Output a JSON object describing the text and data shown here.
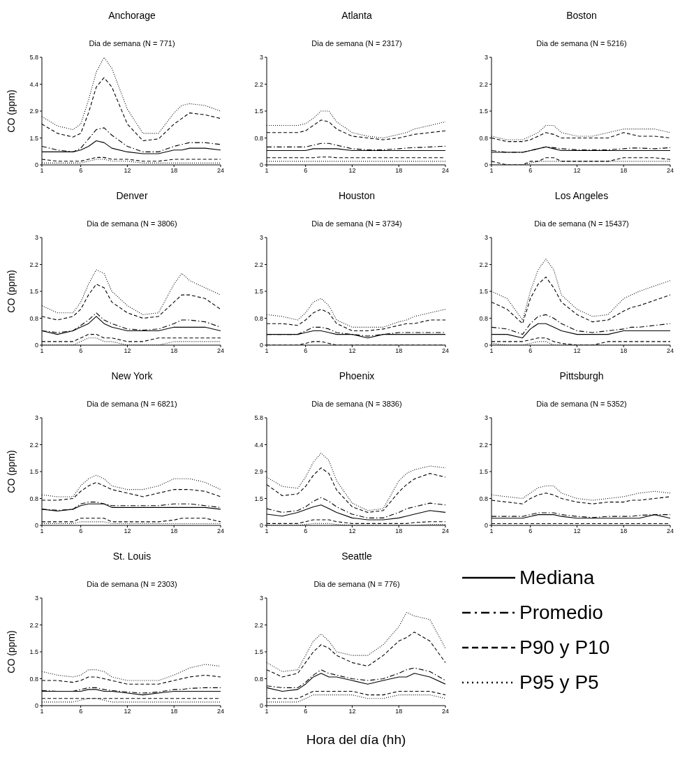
{
  "chart_data": [
    {
      "type": "line",
      "title": "Anchorage",
      "subtitle": "Dia de semana (N = 771)",
      "ylabel": "CO (ppm)",
      "x": [
        1,
        3,
        5,
        6,
        7,
        8,
        9,
        10,
        12,
        14,
        16,
        18,
        19,
        20,
        22,
        24
      ],
      "xlim": [
        1,
        24
      ],
      "xticks": [
        1,
        6,
        12,
        18,
        24
      ],
      "ylim": [
        0,
        5.8
      ],
      "yticks": [
        0,
        {
          "value": 1.45,
          "label": "1.5"
        },
        2.9,
        {
          "value": 4.35,
          "label": "4.4"
        },
        5.8
      ],
      "marker": "none",
      "series": [
        {
          "color": "#000000",
          "line_style": "solid",
          "values": [
            0.7,
            0.7,
            0.7,
            0.8,
            1.0,
            1.3,
            1.2,
            0.9,
            0.7,
            0.6,
            0.6,
            0.8,
            0.8,
            0.9,
            0.9,
            0.8
          ]
        },
        {
          "color": "#000000",
          "line_style": "dashdot",
          "values": [
            1.0,
            0.8,
            0.7,
            0.9,
            1.4,
            1.9,
            2.0,
            1.6,
            1.0,
            0.7,
            0.7,
            1.0,
            1.1,
            1.2,
            1.2,
            1.1
          ]
        },
        {
          "color": "#000000",
          "line_style": "dashed",
          "values": [
            2.2,
            1.7,
            1.5,
            1.7,
            2.8,
            4.2,
            4.7,
            4.2,
            2.2,
            1.3,
            1.4,
            2.2,
            2.5,
            2.8,
            2.7,
            2.5
          ]
        },
        {
          "color": "#000000",
          "line_style": "dashed",
          "values": [
            0.3,
            0.2,
            0.2,
            0.2,
            0.3,
            0.4,
            0.4,
            0.3,
            0.3,
            0.2,
            0.2,
            0.3,
            0.3,
            0.3,
            0.3,
            0.3
          ]
        },
        {
          "color": "#000000",
          "line_style": "dotted",
          "values": [
            2.6,
            2.1,
            1.9,
            2.2,
            3.5,
            5.0,
            5.8,
            5.2,
            3.0,
            1.7,
            1.7,
            2.8,
            3.2,
            3.3,
            3.2,
            2.9
          ]
        },
        {
          "color": "#000000",
          "line_style": "dotted",
          "values": [
            0.1,
            0.1,
            0.1,
            0.1,
            0.2,
            0.3,
            0.3,
            0.2,
            0.2,
            0.1,
            0.1,
            0.1,
            0.1,
            0.1,
            0.1,
            0.1
          ]
        }
      ]
    },
    {
      "type": "line",
      "title": "Atlanta",
      "subtitle": "Dia de semana (N = 2317)",
      "x": [
        1,
        3,
        5,
        6,
        7,
        8,
        9,
        10,
        12,
        14,
        16,
        18,
        19,
        20,
        22,
        24
      ],
      "xlim": [
        1,
        24
      ],
      "xticks": [
        1,
        6,
        12,
        18,
        24
      ],
      "ylim": [
        0,
        3
      ],
      "yticks": [
        0,
        {
          "value": 0.75,
          "label": "0.8"
        },
        1.5,
        {
          "value": 2.25,
          "label": "2.2"
        },
        3
      ],
      "marker": "none",
      "series": [
        {
          "color": "#000000",
          "line_style": "solid",
          "values": [
            0.4,
            0.4,
            0.4,
            0.4,
            0.45,
            0.45,
            0.45,
            0.45,
            0.4,
            0.4,
            0.4,
            0.4,
            0.4,
            0.4,
            0.4,
            0.4
          ]
        },
        {
          "color": "#000000",
          "line_style": "dashdot",
          "values": [
            0.5,
            0.5,
            0.5,
            0.5,
            0.55,
            0.6,
            0.6,
            0.55,
            0.45,
            0.42,
            0.42,
            0.45,
            0.47,
            0.48,
            0.5,
            0.52
          ]
        },
        {
          "color": "#000000",
          "line_style": "dashed",
          "values": [
            0.9,
            0.9,
            0.9,
            0.95,
            1.1,
            1.25,
            1.2,
            1.0,
            0.8,
            0.75,
            0.7,
            0.75,
            0.8,
            0.85,
            0.9,
            0.95
          ]
        },
        {
          "color": "#000000",
          "line_style": "dashed",
          "values": [
            0.2,
            0.2,
            0.2,
            0.2,
            0.2,
            0.22,
            0.22,
            0.2,
            0.2,
            0.2,
            0.2,
            0.2,
            0.2,
            0.2,
            0.2,
            0.2
          ]
        },
        {
          "color": "#000000",
          "line_style": "dotted",
          "values": [
            1.1,
            1.1,
            1.1,
            1.15,
            1.3,
            1.5,
            1.5,
            1.2,
            0.9,
            0.8,
            0.75,
            0.85,
            0.9,
            1.0,
            1.1,
            1.2
          ]
        },
        {
          "color": "#000000",
          "line_style": "dotted",
          "values": [
            0.1,
            0.1,
            0.1,
            0.1,
            0.1,
            0.1,
            0.1,
            0.1,
            0.1,
            0.1,
            0.1,
            0.1,
            0.1,
            0.1,
            0.1,
            0.1
          ]
        }
      ]
    },
    {
      "type": "line",
      "title": "Boston",
      "subtitle": "Dia de semana (N = 5216)",
      "x": [
        1,
        3,
        5,
        6,
        7,
        8,
        9,
        10,
        12,
        14,
        16,
        18,
        19,
        20,
        22,
        24
      ],
      "xlim": [
        1,
        24
      ],
      "xticks": [
        1,
        6,
        12,
        18,
        24
      ],
      "ylim": [
        0,
        3
      ],
      "yticks": [
        0,
        {
          "value": 0.75,
          "label": "0.8"
        },
        1.5,
        {
          "value": 2.25,
          "label": "2.2"
        },
        3
      ],
      "marker": "none",
      "series": [
        {
          "color": "#000000",
          "line_style": "solid",
          "values": [
            0.35,
            0.35,
            0.35,
            0.4,
            0.45,
            0.5,
            0.45,
            0.4,
            0.4,
            0.4,
            0.4,
            0.4,
            0.4,
            0.4,
            0.4,
            0.4
          ]
        },
        {
          "color": "#000000",
          "line_style": "dashdot",
          "values": [
            0.4,
            0.35,
            0.35,
            0.4,
            0.45,
            0.5,
            0.48,
            0.45,
            0.42,
            0.42,
            0.42,
            0.45,
            0.47,
            0.47,
            0.45,
            0.48
          ]
        },
        {
          "color": "#000000",
          "line_style": "dashed",
          "values": [
            0.75,
            0.65,
            0.65,
            0.7,
            0.8,
            0.9,
            0.85,
            0.75,
            0.75,
            0.75,
            0.75,
            0.9,
            0.85,
            0.8,
            0.8,
            0.75
          ]
        },
        {
          "color": "#000000",
          "line_style": "dashed",
          "values": [
            0.1,
            0,
            0,
            0.1,
            0.1,
            0.2,
            0.2,
            0.1,
            0.1,
            0.1,
            0.1,
            0.2,
            0.2,
            0.2,
            0.2,
            0.15
          ]
        },
        {
          "color": "#000000",
          "line_style": "dotted",
          "values": [
            0.8,
            0.7,
            0.7,
            0.8,
            0.9,
            1.1,
            1.1,
            0.9,
            0.8,
            0.8,
            0.9,
            1.0,
            1.0,
            1.0,
            1.0,
            0.9
          ]
        },
        {
          "color": "#000000",
          "line_style": "dotted",
          "values": [
            0,
            0,
            0,
            0.05,
            0.1,
            0.1,
            0.1,
            0.1,
            0.1,
            0.1,
            0.1,
            0.1,
            0.1,
            0.1,
            0.1,
            0.1
          ]
        }
      ]
    },
    {
      "type": "line",
      "title": "Denver",
      "subtitle": "Dia de semana (N = 3806)",
      "ylabel": "CO (ppm)",
      "x": [
        1,
        3,
        5,
        6,
        7,
        8,
        9,
        10,
        12,
        14,
        16,
        18,
        19,
        20,
        22,
        24
      ],
      "xlim": [
        1,
        24
      ],
      "xticks": [
        1,
        6,
        12,
        18,
        24
      ],
      "ylim": [
        0,
        3
      ],
      "yticks": [
        0,
        {
          "value": 0.75,
          "label": "0.8"
        },
        1.5,
        {
          "value": 2.25,
          "label": "2.2"
        },
        3
      ],
      "marker": "none",
      "series": [
        {
          "color": "#000000",
          "line_style": "solid",
          "values": [
            0.4,
            0.3,
            0.4,
            0.5,
            0.6,
            0.8,
            0.6,
            0.5,
            0.4,
            0.4,
            0.4,
            0.5,
            0.5,
            0.5,
            0.5,
            0.4
          ]
        },
        {
          "color": "#000000",
          "line_style": "dashdot",
          "values": [
            0.4,
            0.35,
            0.4,
            0.55,
            0.7,
            0.9,
            0.7,
            0.6,
            0.45,
            0.42,
            0.45,
            0.6,
            0.7,
            0.7,
            0.65,
            0.5
          ]
        },
        {
          "color": "#000000",
          "line_style": "dashed",
          "values": [
            0.8,
            0.7,
            0.8,
            1.0,
            1.4,
            1.7,
            1.6,
            1.2,
            0.9,
            0.75,
            0.8,
            1.2,
            1.4,
            1.4,
            1.3,
            1.0
          ]
        },
        {
          "color": "#000000",
          "line_style": "dashed",
          "values": [
            0.1,
            0.1,
            0.1,
            0.2,
            0.3,
            0.3,
            0.2,
            0.2,
            0.1,
            0.1,
            0.2,
            0.2,
            0.2,
            0.2,
            0.2,
            0.2
          ]
        },
        {
          "color": "#000000",
          "line_style": "dotted",
          "values": [
            1.1,
            0.9,
            0.9,
            1.2,
            1.7,
            2.1,
            2.0,
            1.5,
            1.1,
            0.85,
            0.9,
            1.7,
            2.0,
            1.8,
            1.6,
            1.4
          ]
        },
        {
          "color": "#000000",
          "line_style": "dotted",
          "values": [
            0,
            0,
            0,
            0.1,
            0.2,
            0.2,
            0.1,
            0.1,
            0,
            0,
            0,
            0.1,
            0.1,
            0.1,
            0.1,
            0.1
          ]
        }
      ]
    },
    {
      "type": "line",
      "title": "Houston",
      "subtitle": "Dia de semana (N = 3734)",
      "x": [
        1,
        3,
        5,
        6,
        7,
        8,
        9,
        10,
        12,
        14,
        16,
        18,
        19,
        20,
        22,
        24
      ],
      "xlim": [
        1,
        24
      ],
      "xticks": [
        1,
        6,
        12,
        18,
        24
      ],
      "ylim": [
        0,
        3
      ],
      "yticks": [
        0,
        {
          "value": 0.75,
          "label": "0.8"
        },
        1.5,
        {
          "value": 2.25,
          "label": "2.2"
        },
        3
      ],
      "marker": "none",
      "series": [
        {
          "color": "#000000",
          "line_style": "solid",
          "values": [
            0.3,
            0.3,
            0.3,
            0.35,
            0.4,
            0.4,
            0.35,
            0.3,
            0.3,
            0.2,
            0.3,
            0.3,
            0.3,
            0.3,
            0.3,
            0.3
          ]
        },
        {
          "color": "#000000",
          "line_style": "dashdot",
          "values": [
            0.3,
            0.3,
            0.3,
            0.4,
            0.5,
            0.5,
            0.45,
            0.35,
            0.3,
            0.25,
            0.3,
            0.35,
            0.35,
            0.35,
            0.35,
            0.35
          ]
        },
        {
          "color": "#000000",
          "line_style": "dashed",
          "values": [
            0.6,
            0.6,
            0.55,
            0.7,
            0.9,
            1.0,
            0.9,
            0.6,
            0.4,
            0.4,
            0.45,
            0.55,
            0.6,
            0.6,
            0.7,
            0.7
          ]
        },
        {
          "color": "#000000",
          "line_style": "dashed",
          "values": [
            0,
            0,
            0,
            0.05,
            0.1,
            0.1,
            0.05,
            0,
            0,
            0,
            0,
            0,
            0,
            0,
            0,
            0
          ]
        },
        {
          "color": "#000000",
          "line_style": "dotted",
          "values": [
            0.85,
            0.8,
            0.7,
            0.9,
            1.2,
            1.3,
            1.1,
            0.7,
            0.5,
            0.5,
            0.5,
            0.65,
            0.7,
            0.8,
            0.9,
            1.0
          ]
        },
        {
          "color": "#000000",
          "line_style": "dotted",
          "values": [
            null,
            null,
            null,
            null,
            null,
            null,
            null,
            null,
            null,
            null,
            null,
            null,
            null,
            null,
            null,
            null
          ]
        }
      ]
    },
    {
      "type": "line",
      "title": "Los Angeles",
      "subtitle": "Dia de semana (N = 15437)",
      "x": [
        1,
        3,
        5,
        6,
        7,
        8,
        9,
        10,
        12,
        14,
        16,
        18,
        19,
        20,
        22,
        24
      ],
      "xlim": [
        1,
        24
      ],
      "xticks": [
        1,
        6,
        12,
        18,
        24
      ],
      "ylim": [
        0,
        3
      ],
      "yticks": [
        0,
        {
          "value": 0.75,
          "label": "0.8"
        },
        1.5,
        {
          "value": 2.25,
          "label": "2.2"
        },
        3
      ],
      "marker": "none",
      "series": [
        {
          "color": "#000000",
          "line_style": "solid",
          "values": [
            0.3,
            0.3,
            0.2,
            0.45,
            0.6,
            0.6,
            0.5,
            0.4,
            0.3,
            0.3,
            0.3,
            0.4,
            0.4,
            0.4,
            0.4,
            0.4
          ]
        },
        {
          "color": "#000000",
          "line_style": "dashdot",
          "values": [
            0.5,
            0.45,
            0.3,
            0.6,
            0.8,
            0.85,
            0.75,
            0.6,
            0.4,
            0.35,
            0.4,
            0.45,
            0.5,
            0.5,
            0.55,
            0.6
          ]
        },
        {
          "color": "#000000",
          "line_style": "dashed",
          "values": [
            1.2,
            1.0,
            0.6,
            1.3,
            1.7,
            1.9,
            1.6,
            1.2,
            0.85,
            0.65,
            0.7,
            0.95,
            1.05,
            1.1,
            1.25,
            1.4
          ]
        },
        {
          "color": "#000000",
          "line_style": "dashed",
          "values": [
            0.1,
            0.1,
            0.1,
            0.15,
            0.2,
            0.2,
            0.1,
            0.05,
            0,
            0,
            0.1,
            0.1,
            0.1,
            0.1,
            0.1,
            0.1
          ]
        },
        {
          "color": "#000000",
          "line_style": "dotted",
          "values": [
            1.5,
            1.3,
            0.7,
            1.5,
            2.1,
            2.4,
            2.1,
            1.4,
            1.0,
            0.8,
            0.85,
            1.3,
            1.4,
            1.5,
            1.65,
            1.8
          ]
        },
        {
          "color": "#000000",
          "line_style": "dotted",
          "values": [
            0.05,
            0,
            0,
            0.05,
            0.1,
            0.1,
            0,
            0,
            0,
            0,
            0,
            0,
            0,
            0,
            0,
            0
          ]
        }
      ]
    },
    {
      "type": "line",
      "title": "New York",
      "subtitle": "Dia de semana (N = 6821)",
      "ylabel": "CO (ppm)",
      "x": [
        1,
        3,
        5,
        6,
        7,
        8,
        9,
        10,
        12,
        14,
        16,
        18,
        19,
        20,
        22,
        24
      ],
      "xlim": [
        1,
        24
      ],
      "xticks": [
        1,
        6,
        12,
        18,
        24
      ],
      "ylim": [
        0,
        3
      ],
      "yticks": [
        0,
        {
          "value": 0.75,
          "label": "0.8"
        },
        1.5,
        {
          "value": 2.25,
          "label": "2.2"
        },
        3
      ],
      "marker": "none",
      "series": [
        {
          "color": "#000000",
          "line_style": "solid",
          "values": [
            0.45,
            0.4,
            0.45,
            0.55,
            0.6,
            0.6,
            0.6,
            0.5,
            0.5,
            0.5,
            0.5,
            0.5,
            0.5,
            0.5,
            0.5,
            0.45
          ]
        },
        {
          "color": "#000000",
          "line_style": "dashdot",
          "values": [
            0.45,
            0.42,
            0.45,
            0.6,
            0.65,
            0.65,
            0.6,
            0.55,
            0.55,
            0.55,
            0.55,
            0.6,
            0.6,
            0.6,
            0.55,
            0.5
          ]
        },
        {
          "color": "#000000",
          "line_style": "dashed",
          "values": [
            0.7,
            0.7,
            0.75,
            0.95,
            1.1,
            1.2,
            1.1,
            1.0,
            0.9,
            0.8,
            0.9,
            1.0,
            1.0,
            1.0,
            0.95,
            0.8
          ]
        },
        {
          "color": "#000000",
          "line_style": "dashed",
          "values": [
            0.1,
            0.1,
            0.1,
            0.2,
            0.2,
            0.2,
            0.2,
            0.1,
            0.1,
            0.1,
            0.1,
            0.15,
            0.2,
            0.2,
            0.2,
            0.1
          ]
        },
        {
          "color": "#000000",
          "line_style": "dotted",
          "values": [
            0.85,
            0.8,
            0.8,
            1.1,
            1.3,
            1.4,
            1.3,
            1.1,
            1.0,
            1.0,
            1.1,
            1.3,
            1.3,
            1.3,
            1.2,
            1.0
          ]
        },
        {
          "color": "#000000",
          "line_style": "dotted",
          "values": [
            0.05,
            0.05,
            0.05,
            0.1,
            0.1,
            0.1,
            0.1,
            0.05,
            0.05,
            0.05,
            0.05,
            0.05,
            0.05,
            0.05,
            0.05,
            0.05
          ]
        }
      ]
    },
    {
      "type": "line",
      "title": "Phoenix",
      "subtitle": "Dia de semana (N = 3836)",
      "x": [
        1,
        3,
        5,
        6,
        7,
        8,
        9,
        10,
        12,
        14,
        16,
        18,
        19,
        20,
        22,
        24
      ],
      "xlim": [
        1,
        24
      ],
      "xticks": [
        1,
        6,
        12,
        18,
        24
      ],
      "ylim": [
        0,
        5.8
      ],
      "yticks": [
        0,
        {
          "value": 1.45,
          "label": "1.5"
        },
        2.9,
        {
          "value": 4.35,
          "label": "4.4"
        },
        5.8
      ],
      "marker": "none",
      "series": [
        {
          "color": "#000000",
          "line_style": "solid",
          "values": [
            0.6,
            0.5,
            0.7,
            0.85,
            1.0,
            1.1,
            0.9,
            0.7,
            0.4,
            0.3,
            0.3,
            0.4,
            0.5,
            0.6,
            0.8,
            0.7
          ]
        },
        {
          "color": "#000000",
          "line_style": "dashdot",
          "values": [
            0.9,
            0.7,
            0.8,
            1.0,
            1.3,
            1.5,
            1.3,
            1.0,
            0.6,
            0.4,
            0.4,
            0.7,
            0.9,
            1.0,
            1.2,
            1.1
          ]
        },
        {
          "color": "#000000",
          "line_style": "dashed",
          "values": [
            2.2,
            1.6,
            1.7,
            2.1,
            2.7,
            3.1,
            2.8,
            1.9,
            1.0,
            0.7,
            0.8,
            1.8,
            2.2,
            2.5,
            2.8,
            2.6
          ]
        },
        {
          "color": "#000000",
          "line_style": "dashed",
          "values": [
            0.1,
            0.1,
            0.1,
            0.2,
            0.3,
            0.3,
            0.3,
            0.2,
            0.1,
            0.1,
            0.1,
            0.1,
            0.1,
            0.15,
            0.2,
            0.2
          ]
        },
        {
          "color": "#000000",
          "line_style": "dotted",
          "values": [
            2.6,
            2.1,
            2.0,
            2.6,
            3.4,
            3.9,
            3.5,
            2.4,
            1.2,
            0.8,
            0.9,
            2.4,
            2.8,
            3.0,
            3.2,
            3.1
          ]
        },
        {
          "color": "#000000",
          "line_style": "dotted",
          "values": [
            0,
            0,
            0,
            0.05,
            0.1,
            0.1,
            0.1,
            0.05,
            0,
            0,
            0,
            0,
            0,
            0,
            0.05,
            0.05
          ]
        }
      ]
    },
    {
      "type": "line",
      "title": "Pittsburgh",
      "subtitle": "Dia de semana (N = 5352)",
      "x": [
        1,
        3,
        5,
        6,
        7,
        8,
        9,
        10,
        12,
        14,
        16,
        18,
        19,
        20,
        22,
        24
      ],
      "xlim": [
        1,
        24
      ],
      "xticks": [
        1,
        6,
        12,
        18,
        24
      ],
      "ylim": [
        0,
        3
      ],
      "yticks": [
        0,
        {
          "value": 0.75,
          "label": "0.8"
        },
        1.5,
        {
          "value": 2.25,
          "label": "2.2"
        },
        3
      ],
      "marker": "none",
      "series": [
        {
          "color": "#000000",
          "line_style": "solid",
          "values": [
            0.2,
            0.2,
            0.2,
            0.25,
            0.3,
            0.3,
            0.3,
            0.25,
            0.2,
            0.2,
            0.2,
            0.2,
            0.2,
            0.2,
            0.3,
            0.2
          ]
        },
        {
          "color": "#000000",
          "line_style": "dashdot",
          "values": [
            0.25,
            0.25,
            0.25,
            0.3,
            0.35,
            0.35,
            0.35,
            0.3,
            0.25,
            0.22,
            0.25,
            0.25,
            0.25,
            0.28,
            0.3,
            0.3
          ]
        },
        {
          "color": "#000000",
          "line_style": "dashed",
          "values": [
            0.7,
            0.65,
            0.6,
            0.75,
            0.85,
            0.9,
            0.85,
            0.75,
            0.65,
            0.6,
            0.65,
            0.65,
            0.7,
            0.7,
            0.75,
            0.8
          ]
        },
        {
          "color": "#000000",
          "line_style": "dashed",
          "values": [
            0.05,
            0.05,
            0.05,
            0.05,
            0.05,
            0.05,
            0.05,
            0.05,
            0.05,
            0.05,
            0.05,
            0.05,
            0.05,
            0.05,
            0.05,
            0.05
          ]
        },
        {
          "color": "#000000",
          "line_style": "dotted",
          "values": [
            0.85,
            0.8,
            0.75,
            0.9,
            1.05,
            1.1,
            1.1,
            0.9,
            0.75,
            0.7,
            0.75,
            0.8,
            0.85,
            0.9,
            0.95,
            0.9
          ]
        },
        {
          "color": "#000000",
          "line_style": "dotted",
          "values": [
            null,
            null,
            null,
            null,
            null,
            null,
            null,
            null,
            null,
            null,
            null,
            null,
            null,
            null,
            null,
            null
          ]
        }
      ]
    },
    {
      "type": "line",
      "title": "St. Louis",
      "subtitle": "Dia de semana (N = 2303)",
      "ylabel": "CO (ppm)",
      "x": [
        1,
        3,
        5,
        6,
        7,
        8,
        9,
        10,
        12,
        14,
        16,
        18,
        19,
        20,
        22,
        24
      ],
      "xlim": [
        1,
        24
      ],
      "xticks": [
        1,
        6,
        12,
        18,
        24
      ],
      "ylim": [
        0,
        3
      ],
      "yticks": [
        0,
        {
          "value": 0.75,
          "label": "0.8"
        },
        1.5,
        {
          "value": 2.25,
          "label": "2.2"
        },
        3
      ],
      "marker": "none",
      "series": [
        {
          "color": "#000000",
          "line_style": "solid",
          "values": [
            0.4,
            0.4,
            0.4,
            0.4,
            0.45,
            0.45,
            0.4,
            0.4,
            0.35,
            0.3,
            0.35,
            0.4,
            0.4,
            0.4,
            0.4,
            0.4
          ]
        },
        {
          "color": "#000000",
          "line_style": "dashdot",
          "values": [
            0.42,
            0.4,
            0.4,
            0.45,
            0.5,
            0.5,
            0.45,
            0.42,
            0.38,
            0.35,
            0.38,
            0.45,
            0.45,
            0.48,
            0.5,
            0.5
          ]
        },
        {
          "color": "#000000",
          "line_style": "dashed",
          "values": [
            0.7,
            0.7,
            0.65,
            0.7,
            0.8,
            0.8,
            0.75,
            0.7,
            0.6,
            0.6,
            0.6,
            0.7,
            0.75,
            0.8,
            0.85,
            0.8
          ]
        },
        {
          "color": "#000000",
          "line_style": "dashed",
          "values": [
            0.2,
            0.2,
            0.2,
            0.2,
            0.2,
            0.2,
            0.2,
            0.2,
            0.2,
            0.2,
            0.2,
            0.2,
            0.2,
            0.2,
            0.2,
            0.2
          ]
        },
        {
          "color": "#000000",
          "line_style": "dotted",
          "values": [
            0.95,
            0.85,
            0.8,
            0.85,
            1.0,
            1.0,
            0.95,
            0.8,
            0.7,
            0.7,
            0.7,
            0.85,
            0.95,
            1.05,
            1.15,
            1.1
          ]
        },
        {
          "color": "#000000",
          "line_style": "dotted",
          "values": [
            0.1,
            0.1,
            0.1,
            0.15,
            0.2,
            0.2,
            0.15,
            0.1,
            0.1,
            0.1,
            0.1,
            0.1,
            0.1,
            0.1,
            0.1,
            0.1
          ]
        }
      ]
    },
    {
      "type": "line",
      "title": "Seattle",
      "subtitle": "Dia de semana (N = 776)",
      "xlabel": "Hora del día (hh)",
      "legend": "right",
      "x": [
        1,
        3,
        5,
        6,
        7,
        8,
        9,
        10,
        12,
        14,
        16,
        18,
        19,
        20,
        22,
        24
      ],
      "xlim": [
        1,
        24
      ],
      "xticks": [
        1,
        6,
        12,
        18,
        24
      ],
      "ylim": [
        0,
        3
      ],
      "yticks": [
        0,
        {
          "value": 0.75,
          "label": "0.8"
        },
        1.5,
        {
          "value": 2.25,
          "label": "2.2"
        },
        3
      ],
      "marker": "none",
      "series": [
        {
          "name": "Mediana",
          "color": "#000000",
          "line_style": "solid",
          "values": [
            0.5,
            0.4,
            0.45,
            0.6,
            0.8,
            0.9,
            0.8,
            0.8,
            0.7,
            0.6,
            0.7,
            0.8,
            0.8,
            0.9,
            0.8,
            0.6
          ]
        },
        {
          "name": "Promedio",
          "color": "#000000",
          "line_style": "dashdot",
          "values": [
            0.55,
            0.5,
            0.5,
            0.65,
            0.85,
            1.0,
            0.9,
            0.85,
            0.75,
            0.7,
            0.75,
            0.9,
            1.0,
            1.05,
            0.95,
            0.7
          ]
        },
        {
          "name": "P90 y P10",
          "color": "#000000",
          "line_style": "dashed",
          "values": [
            1.0,
            0.8,
            0.9,
            1.2,
            1.5,
            1.7,
            1.6,
            1.4,
            1.2,
            1.1,
            1.4,
            1.8,
            1.9,
            2.05,
            1.8,
            1.2
          ]
        },
        {
          "color": "#000000",
          "line_style": "dashed",
          "values": [
            0.2,
            0.2,
            0.2,
            0.3,
            0.4,
            0.4,
            0.4,
            0.4,
            0.4,
            0.3,
            0.3,
            0.4,
            0.4,
            0.4,
            0.4,
            0.3
          ]
        },
        {
          "name": "P95 y P5",
          "color": "#000000",
          "line_style": "dotted",
          "values": [
            1.2,
            0.95,
            1.0,
            1.4,
            1.8,
            2.0,
            1.8,
            1.5,
            1.4,
            1.4,
            1.7,
            2.2,
            2.6,
            2.5,
            2.4,
            1.6
          ]
        },
        {
          "color": "#000000",
          "line_style": "dotted",
          "values": [
            0.1,
            0.1,
            0.1,
            0.2,
            0.3,
            0.3,
            0.3,
            0.3,
            0.3,
            0.2,
            0.2,
            0.3,
            0.3,
            0.3,
            0.3,
            0.2
          ]
        }
      ]
    }
  ]
}
